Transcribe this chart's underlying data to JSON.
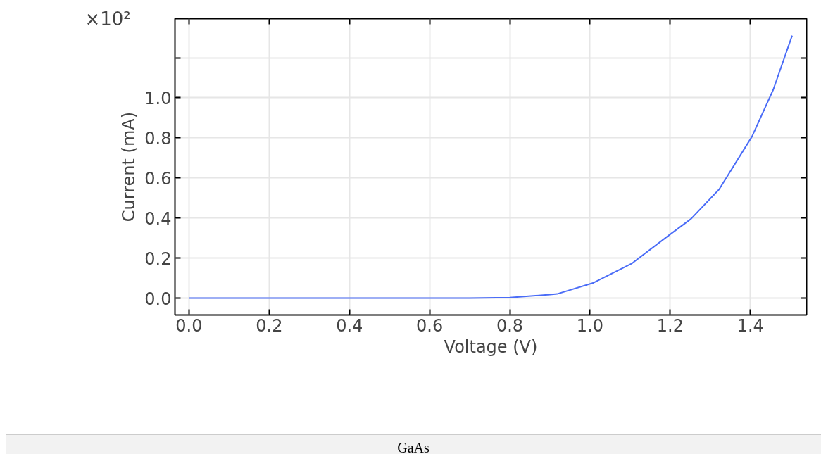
{
  "chart_data": {
    "type": "line",
    "xlabel": "Voltage (V)",
    "ylabel": "Current (mA)",
    "annotations": [
      "×10²",
      "GaAs"
    ],
    "x": [
      0.0,
      0.1,
      0.2,
      0.3,
      0.4,
      0.5,
      0.6,
      0.7,
      0.8,
      0.9,
      0.918,
      1.009,
      1.105,
      1.193,
      1.252,
      1.322,
      1.404,
      1.457,
      1.504
    ],
    "series": [
      {
        "color": "#4a6cf7",
        "values": [
          0.0,
          0.0,
          0.0,
          0.0,
          0.0,
          0.0,
          0.0,
          0.0,
          0.003,
          0.018,
          0.021,
          0.077,
          0.174,
          0.308,
          0.396,
          0.543,
          0.807,
          1.041,
          1.31
        ]
      }
    ],
    "xlim": [
      -0.035,
      1.54
    ],
    "ylim": [
      -0.084,
      1.395
    ],
    "xticks": [
      {
        "value": 0,
        "label": "0.0"
      },
      0.2,
      0.4,
      0.6,
      0.8,
      {
        "value": 1,
        "label": "1.0"
      },
      1.2,
      1.4
    ],
    "yticks": [
      {
        "value": 0,
        "label": "0.0"
      },
      0.2,
      0.4,
      0.6,
      0.8,
      {
        "value": 1,
        "label": "1.0"
      },
      {
        "value": 1.2,
        "label": null
      }
    ],
    "grid": true,
    "marker": "none",
    "line_style": "solid"
  }
}
